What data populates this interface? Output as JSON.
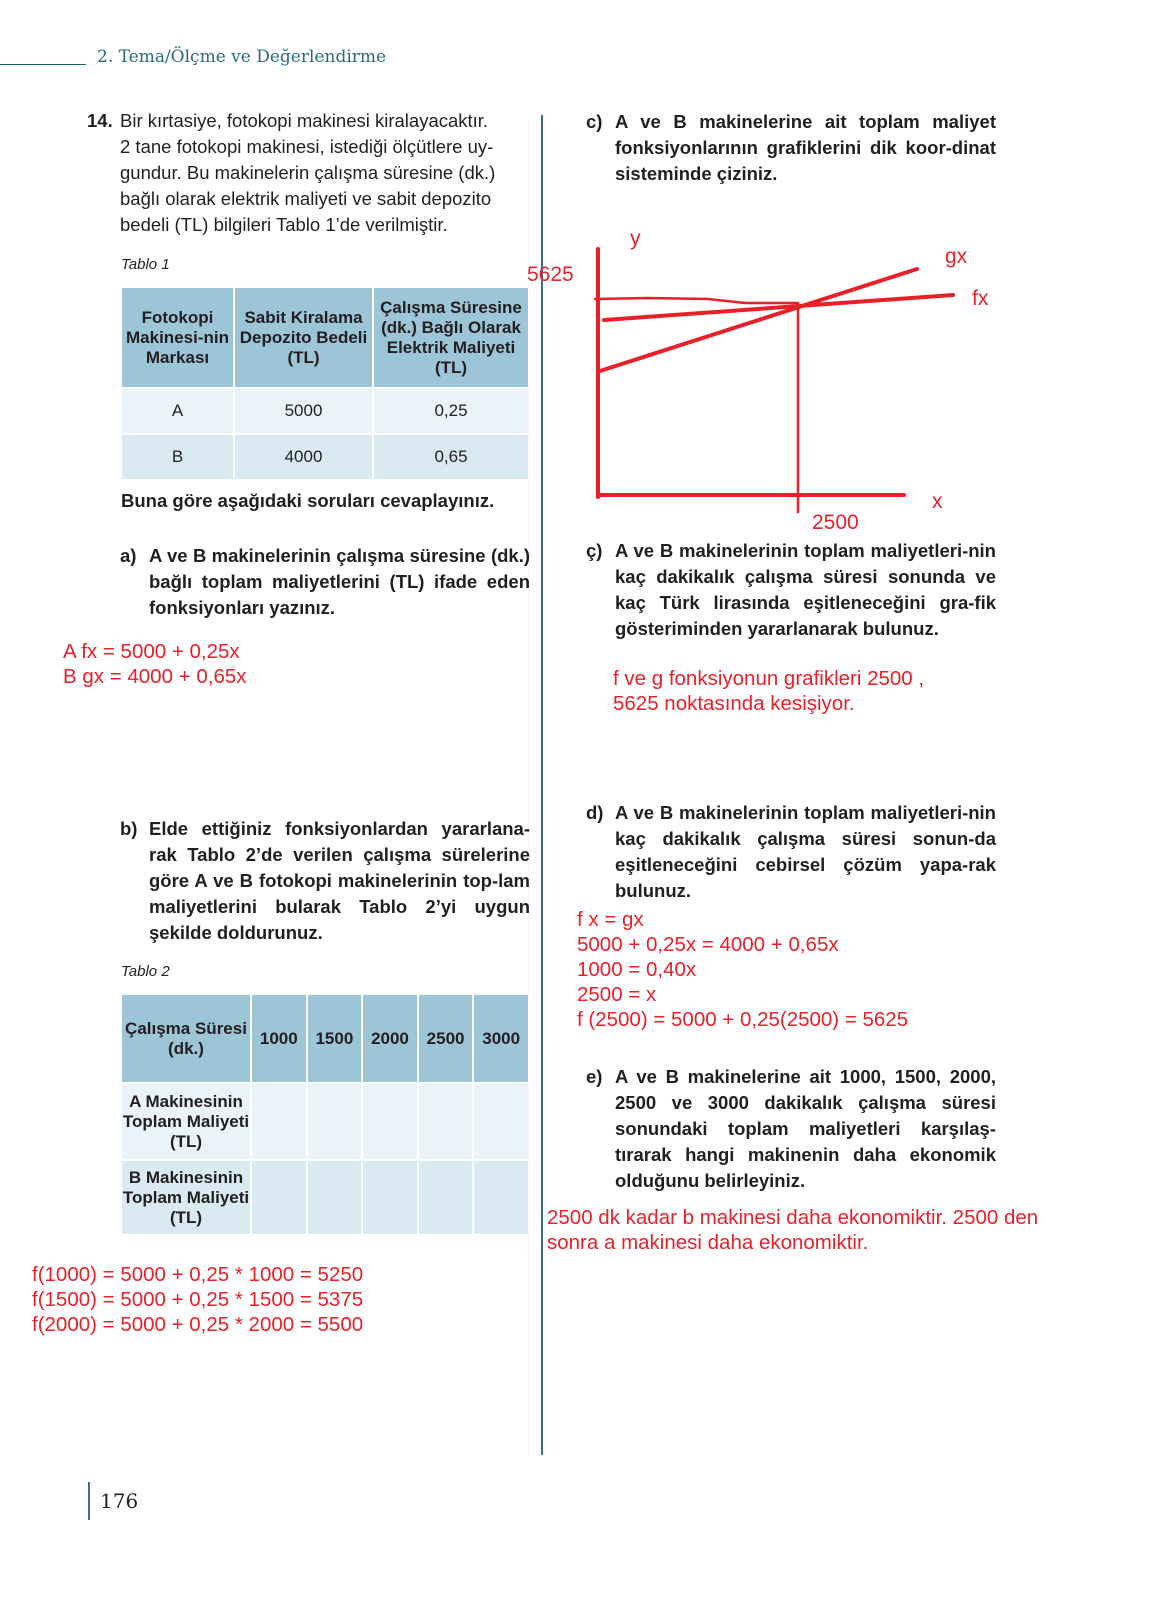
{
  "header": {
    "title": "2. Tema/Ölçme ve Değerlendirme"
  },
  "question": {
    "number": "14.",
    "text_lines": [
      "Bir kırtasiye, fotokopi makinesi kiralayacaktır.",
      "2 tane fotokopi makinesi, istediği ölçütlere uy-",
      "gundur. Bu makinelerin çalışma süresine (dk.)",
      "bağlı olarak elektrik maliyeti ve sabit depozito",
      "bedeli (TL) bilgileri Tablo 1’de verilmiştir."
    ]
  },
  "table1": {
    "caption": "Tablo 1",
    "headers": [
      "Fotokopi Makinesi-nin Markası",
      "Sabit Kiralama Depozito Bedeli (TL)",
      "Çalışma Süresine (dk.) Bağlı Olarak Elektrik Maliyeti (TL)"
    ],
    "rows": [
      [
        "A",
        "5000",
        "0,25"
      ],
      [
        "B",
        "4000",
        "0,65"
      ]
    ]
  },
  "instruction": "Buna göre aşağıdaki soruları cevaplayınız.",
  "parts": {
    "a": {
      "label": "a)",
      "text": "A ve B makinelerinin çalışma süresine (dk.) bağlı toplam maliyetlerini (TL) ifade eden fonksiyonları yazınız.",
      "answer": [
        "A fx = 5000 + 0,25x",
        "B gx = 4000 + 0,65x"
      ]
    },
    "b": {
      "label": "b)",
      "text": "Elde ettiğiniz fonksiyonlardan yararlana-rak Tablo 2’de verilen çalışma sürelerine göre A ve B fotokopi makinelerinin top-lam maliyetlerini bularak Tablo 2’yi uygun şekilde doldurunuz.",
      "answer": [
        "f(1000) = 5000 + 0,25 * 1000 = 5250",
        "f(1500) = 5000 + 0,25 * 1500 = 5375",
        "f(2000) = 5000 + 0,25 * 2000 = 5500"
      ]
    },
    "c": {
      "label": "c)",
      "text": "A ve B makinelerine ait toplam maliyet fonksiyonlarının grafiklerini dik koor-dinat sisteminde çiziniz."
    },
    "c2": {
      "label": "ç)",
      "text": "A ve B makinelerinin toplam maliyetleri-nin kaç dakikalık çalışma süresi sonunda ve kaç Türk lirasında eşitleneceğini gra-fik gösteriminden yararlanarak bulunuz.",
      "answer": [
        "f ve g fonksiyonun grafikleri 2500 ,",
        "5625 noktasında kesişiyor."
      ]
    },
    "d": {
      "label": "d)",
      "text": "A ve B makinelerinin toplam maliyetleri-nin kaç dakikalık çalışma süresi sonun-da eşitleneceğini cebirsel çözüm yapa-rak bulunuz.",
      "answer": [
        "f x = gx",
        "5000 + 0,25x = 4000 + 0,65x",
        "1000 = 0,40x",
        "2500 = x",
        "f (2500) = 5000 + 0,25(2500) = 5625"
      ]
    },
    "e": {
      "label": "e)",
      "text": "A ve B makinelerine ait 1000, 1500, 2000, 2500 ve 3000 dakikalık çalışma süresi sonundaki toplam maliyetleri karşılaş-tırarak hangi makinenin daha ekonomik olduğunu belirleyiniz.",
      "answer": [
        "2500 dk kadar b makinesi daha ekonomiktir. 2500 den",
        "sonra a makinesi daha ekonomiktir."
      ]
    }
  },
  "sketch": {
    "y_label": "y",
    "x_label": "x",
    "g_label": "gx",
    "f_label": "fx",
    "y_value": "5625",
    "x_value": "2500",
    "ink_color": "#e8202a"
  },
  "table2": {
    "caption": "Tablo 2",
    "header": "Çalışma Süresi (dk.)",
    "durations": [
      "1000",
      "1500",
      "2000",
      "2500",
      "3000"
    ],
    "row_labels": [
      "A Makinesinin Toplam Maliyeti (TL)",
      "B Makinesinin Toplam Maliyeti (TL)"
    ]
  },
  "page_number": "176"
}
